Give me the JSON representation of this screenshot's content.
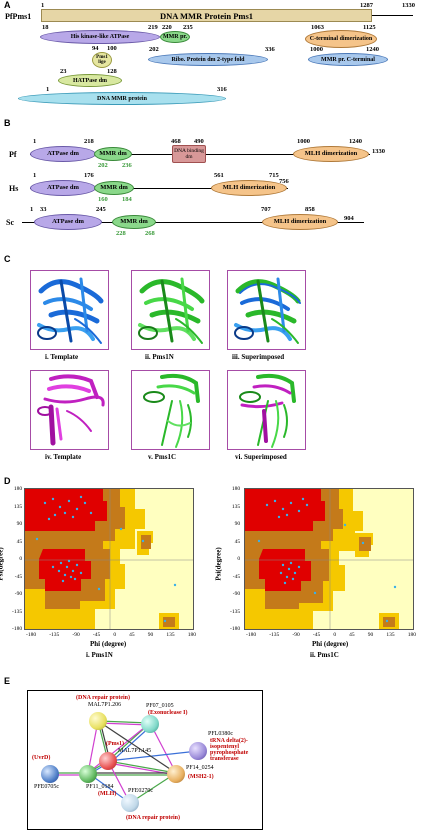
{
  "panel_a": {
    "label": "A",
    "protein": "PfPms1",
    "bar_title": "DNA  MMR  Protein Pms1",
    "start": "1",
    "end1": "1287",
    "end2": "1330",
    "domains": [
      {
        "name": "His kinase-like ATPase",
        "start": "18",
        "end": "219",
        "color": "#b8a8e8"
      },
      {
        "name": "MMR pr.",
        "start": "220",
        "end": "235",
        "color": "#8ad88a"
      },
      {
        "name": "C-terminal dimerization",
        "start": "1063",
        "end": "1125",
        "color": "#f5c48a"
      },
      {
        "name": "Pms1 lige",
        "start": "94",
        "end": "100",
        "color": "#e6e6a0"
      },
      {
        "name": "Ribo. Protein dm 2-type fold",
        "start": "202",
        "end": "336",
        "color": "#a8c8ec"
      },
      {
        "name": "MMR pr. C-terminal",
        "start": "1000",
        "end": "1240",
        "color": "#a8c8ec"
      },
      {
        "name": "HATPase dm",
        "start": "23",
        "end": "128",
        "color": "#d8e8a0"
      },
      {
        "name": "DNA MMR protein",
        "start": "1",
        "end": "316",
        "color": "#a8e0ee"
      }
    ]
  },
  "panel_b": {
    "label": "B",
    "rows": [
      {
        "species": "Pf",
        "nums": [
          "1",
          "218",
          "468",
          "490",
          "1000",
          "1240",
          "1330"
        ],
        "green": [
          "202",
          "236"
        ],
        "atpase": "ATPase dm",
        "mmr": "MMR dm",
        "bind": "DNA binding dm",
        "mlh": "MLH dimerization"
      },
      {
        "species": "Hs",
        "nums": [
          "1",
          "176",
          "561",
          "715",
          "756"
        ],
        "green": [
          "160",
          "184"
        ],
        "atpase": "ATPase dm",
        "mmr": "MMR dm",
        "mlh": "MLH dimerization"
      },
      {
        "species": "Sc",
        "nums": [
          "1",
          "33",
          "245",
          "707",
          "858",
          "904"
        ],
        "green": [
          "228",
          "268"
        ],
        "atpase": "ATPase dm",
        "mmr": "MMR dm",
        "mlh": "MLH dimerization"
      }
    ]
  },
  "panel_c": {
    "label": "C",
    "captions": [
      "i. Template",
      "ii. Pms1N",
      "iii. Superimposed",
      "iv. Template",
      "v. Pms1C",
      "vi. Superimposed"
    ]
  },
  "panel_d": {
    "label": "D",
    "ylabel": "Psi(degree)",
    "xlabel": "Phi (degree)",
    "xticks": [
      "-180",
      "-135",
      "-90",
      "-45",
      "0",
      "45",
      "90",
      "135",
      "180"
    ],
    "yticks": [
      "180",
      "135",
      "90",
      "45",
      "0",
      "-45",
      "-90",
      "-135",
      "-180"
    ],
    "captions": [
      "i. Pms1N",
      "ii. Pms1C"
    ]
  },
  "panel_e": {
    "label": "E",
    "nodes": [
      {
        "id": "MAL7P1.206",
        "desc": "(DNA repair protein)",
        "color": "#e8e060"
      },
      {
        "id": "PF07_0105",
        "desc": "(Exonuclease I)",
        "color": "#7fd8c8"
      },
      {
        "id": "PFL0380c",
        "desc": "tRNA delta(2)-isopentenyl pyrophosphate transferase",
        "color": "#9a8ad8"
      },
      {
        "id": "MAL7P1.145",
        "desc": "(Pms1)",
        "color": "#e85050"
      },
      {
        "id": "PF11_0184",
        "desc": "(MLH)",
        "color": "#60b860"
      },
      {
        "id": "PFE0705c",
        "desc": "(UvrD)",
        "color": "#5080c8"
      },
      {
        "id": "PF14_0254",
        "desc": "(MSH2-1)",
        "color": "#e8b060"
      },
      {
        "id": "PFE0270c",
        "desc": "(DNA repair protein)",
        "color": "#c0d8e8"
      }
    ]
  }
}
